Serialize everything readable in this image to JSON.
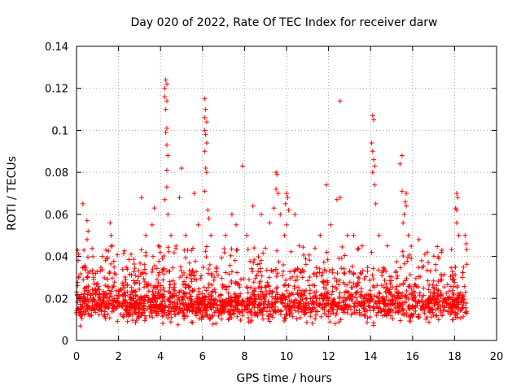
{
  "chart_data": {
    "type": "scatter",
    "title": "Day 020 of 2022, Rate Of TEC Index for receiver darw",
    "xlabel": "GPS time / hours",
    "ylabel": "ROTI / TECUs",
    "xlim": [
      0,
      20
    ],
    "ylim": [
      0,
      0.14
    ],
    "xticks": [
      "0",
      "2",
      "4",
      "6",
      "8",
      "10",
      "12",
      "14",
      "16",
      "18",
      "20"
    ],
    "yticks": [
      "0",
      "0.02",
      "0.04",
      "0.06",
      "0.08",
      "0.1",
      "0.12",
      "0.14"
    ],
    "grid": true,
    "marker": "+",
    "color": "#ff0000",
    "x_range_of_data": [
      0,
      18.6
    ],
    "band": {
      "lower": 0.005,
      "typical_low": 0.01,
      "typical_high": 0.025,
      "dense_upper": 0.035
    },
    "spikes": [
      {
        "x": 0.05,
        "y": 0.043
      },
      {
        "x": 0.1,
        "y": 0.041
      },
      {
        "x": 0.3,
        "y": 0.065
      },
      {
        "x": 0.5,
        "y": 0.057
      },
      {
        "x": 0.55,
        "y": 0.052
      },
      {
        "x": 0.5,
        "y": 0.048
      },
      {
        "x": 1.4,
        "y": 0.043
      },
      {
        "x": 1.6,
        "y": 0.056
      },
      {
        "x": 1.65,
        "y": 0.05
      },
      {
        "x": 1.7,
        "y": 0.045
      },
      {
        "x": 2.6,
        "y": 0.041
      },
      {
        "x": 3.1,
        "y": 0.068
      },
      {
        "x": 3.3,
        "y": 0.05
      },
      {
        "x": 3.6,
        "y": 0.055
      },
      {
        "x": 3.7,
        "y": 0.063
      },
      {
        "x": 3.9,
        "y": 0.045
      },
      {
        "x": 4.2,
        "y": 0.12
      },
      {
        "x": 4.25,
        "y": 0.124
      },
      {
        "x": 4.3,
        "y": 0.122
      },
      {
        "x": 4.2,
        "y": 0.116
      },
      {
        "x": 4.3,
        "y": 0.114
      },
      {
        "x": 4.25,
        "y": 0.11
      },
      {
        "x": 4.3,
        "y": 0.101
      },
      {
        "x": 4.25,
        "y": 0.099
      },
      {
        "x": 4.3,
        "y": 0.093
      },
      {
        "x": 4.35,
        "y": 0.088
      },
      {
        "x": 4.3,
        "y": 0.081
      },
      {
        "x": 4.3,
        "y": 0.073
      },
      {
        "x": 4.2,
        "y": 0.067
      },
      {
        "x": 4.35,
        "y": 0.06
      },
      {
        "x": 4.5,
        "y": 0.05
      },
      {
        "x": 5.0,
        "y": 0.082
      },
      {
        "x": 4.9,
        "y": 0.068
      },
      {
        "x": 5.2,
        "y": 0.05
      },
      {
        "x": 5.6,
        "y": 0.07
      },
      {
        "x": 5.8,
        "y": 0.055
      },
      {
        "x": 6.1,
        "y": 0.115
      },
      {
        "x": 6.15,
        "y": 0.11
      },
      {
        "x": 6.1,
        "y": 0.106
      },
      {
        "x": 6.2,
        "y": 0.104
      },
      {
        "x": 6.1,
        "y": 0.1
      },
      {
        "x": 6.15,
        "y": 0.098
      },
      {
        "x": 6.2,
        "y": 0.094
      },
      {
        "x": 6.1,
        "y": 0.09
      },
      {
        "x": 6.15,
        "y": 0.082
      },
      {
        "x": 6.2,
        "y": 0.08
      },
      {
        "x": 6.1,
        "y": 0.071
      },
      {
        "x": 6.25,
        "y": 0.062
      },
      {
        "x": 6.3,
        "y": 0.058
      },
      {
        "x": 6.4,
        "y": 0.05
      },
      {
        "x": 7.1,
        "y": 0.05
      },
      {
        "x": 7.4,
        "y": 0.06
      },
      {
        "x": 7.6,
        "y": 0.055
      },
      {
        "x": 7.9,
        "y": 0.083
      },
      {
        "x": 8.1,
        "y": 0.05
      },
      {
        "x": 8.4,
        "y": 0.064
      },
      {
        "x": 8.8,
        "y": 0.06
      },
      {
        "x": 9.2,
        "y": 0.056
      },
      {
        "x": 9.5,
        "y": 0.08
      },
      {
        "x": 9.55,
        "y": 0.079
      },
      {
        "x": 9.5,
        "y": 0.072
      },
      {
        "x": 9.6,
        "y": 0.07
      },
      {
        "x": 9.4,
        "y": 0.063
      },
      {
        "x": 9.7,
        "y": 0.06
      },
      {
        "x": 10.0,
        "y": 0.07
      },
      {
        "x": 10.05,
        "y": 0.068
      },
      {
        "x": 9.95,
        "y": 0.065
      },
      {
        "x": 10.1,
        "y": 0.062
      },
      {
        "x": 10.0,
        "y": 0.055
      },
      {
        "x": 9.9,
        "y": 0.05
      },
      {
        "x": 10.4,
        "y": 0.06
      },
      {
        "x": 10.6,
        "y": 0.045
      },
      {
        "x": 11.6,
        "y": 0.05
      },
      {
        "x": 11.9,
        "y": 0.074
      },
      {
        "x": 12.1,
        "y": 0.055
      },
      {
        "x": 12.4,
        "y": 0.067
      },
      {
        "x": 12.55,
        "y": 0.068
      },
      {
        "x": 12.55,
        "y": 0.114
      },
      {
        "x": 12.9,
        "y": 0.05
      },
      {
        "x": 13.2,
        "y": 0.05
      },
      {
        "x": 13.6,
        "y": 0.045
      },
      {
        "x": 14.1,
        "y": 0.107
      },
      {
        "x": 14.15,
        "y": 0.105
      },
      {
        "x": 14.05,
        "y": 0.094
      },
      {
        "x": 14.1,
        "y": 0.09
      },
      {
        "x": 14.15,
        "y": 0.086
      },
      {
        "x": 14.2,
        "y": 0.083
      },
      {
        "x": 14.1,
        "y": 0.08
      },
      {
        "x": 14.2,
        "y": 0.074
      },
      {
        "x": 14.25,
        "y": 0.065
      },
      {
        "x": 14.4,
        "y": 0.05
      },
      {
        "x": 14.8,
        "y": 0.045
      },
      {
        "x": 15.4,
        "y": 0.084
      },
      {
        "x": 15.5,
        "y": 0.088
      },
      {
        "x": 15.5,
        "y": 0.071
      },
      {
        "x": 15.7,
        "y": 0.07
      },
      {
        "x": 15.65,
        "y": 0.066
      },
      {
        "x": 15.7,
        "y": 0.064
      },
      {
        "x": 15.6,
        "y": 0.06
      },
      {
        "x": 15.55,
        "y": 0.056
      },
      {
        "x": 15.8,
        "y": 0.05
      },
      {
        "x": 16.3,
        "y": 0.048
      },
      {
        "x": 16.7,
        "y": 0.042
      },
      {
        "x": 17.4,
        "y": 0.043
      },
      {
        "x": 18.1,
        "y": 0.07
      },
      {
        "x": 18.15,
        "y": 0.068
      },
      {
        "x": 18.05,
        "y": 0.063
      },
      {
        "x": 18.1,
        "y": 0.062
      },
      {
        "x": 18.1,
        "y": 0.056
      },
      {
        "x": 18.2,
        "y": 0.05
      },
      {
        "x": 18.5,
        "y": 0.05
      },
      {
        "x": 18.55,
        "y": 0.046
      }
    ]
  }
}
